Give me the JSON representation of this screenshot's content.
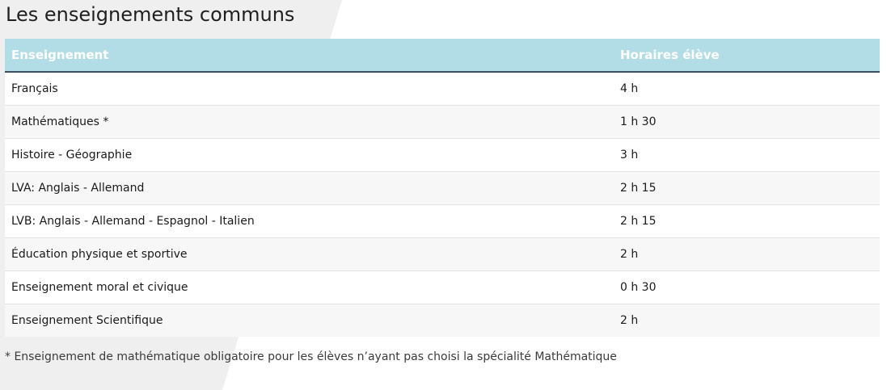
{
  "page": {
    "title": "Les enseignements communs"
  },
  "table": {
    "columns": [
      "Enseignement",
      "Horaires élève"
    ],
    "rows": [
      {
        "subject": "Français",
        "hours": "4 h"
      },
      {
        "subject": "Mathématiques *",
        "hours": "1 h 30"
      },
      {
        "subject": "Histoire - Géographie",
        "hours": "3 h"
      },
      {
        "subject": "LVA: Anglais - Allemand",
        "hours": "2 h 15"
      },
      {
        "subject": "LVB: Anglais - Allemand - Espagnol - Italien",
        "hours": "2 h 15"
      },
      {
        "subject": "Éducation physique et sportive",
        "hours": "2 h"
      },
      {
        "subject": "Enseignement moral et civique",
        "hours": "0 h 30"
      },
      {
        "subject": "Enseignement Scientifique",
        "hours": "2 h"
      }
    ]
  },
  "footnote": "* Enseignement de mathématique obligatoire pour les élèves n’ayant pas choisi la spécialité Mathématique",
  "colors": {
    "header_bg": "#b3dde6",
    "header_text": "#ffffff",
    "header_border": "#3a4f63",
    "row_alt": "#f7f7f7"
  }
}
